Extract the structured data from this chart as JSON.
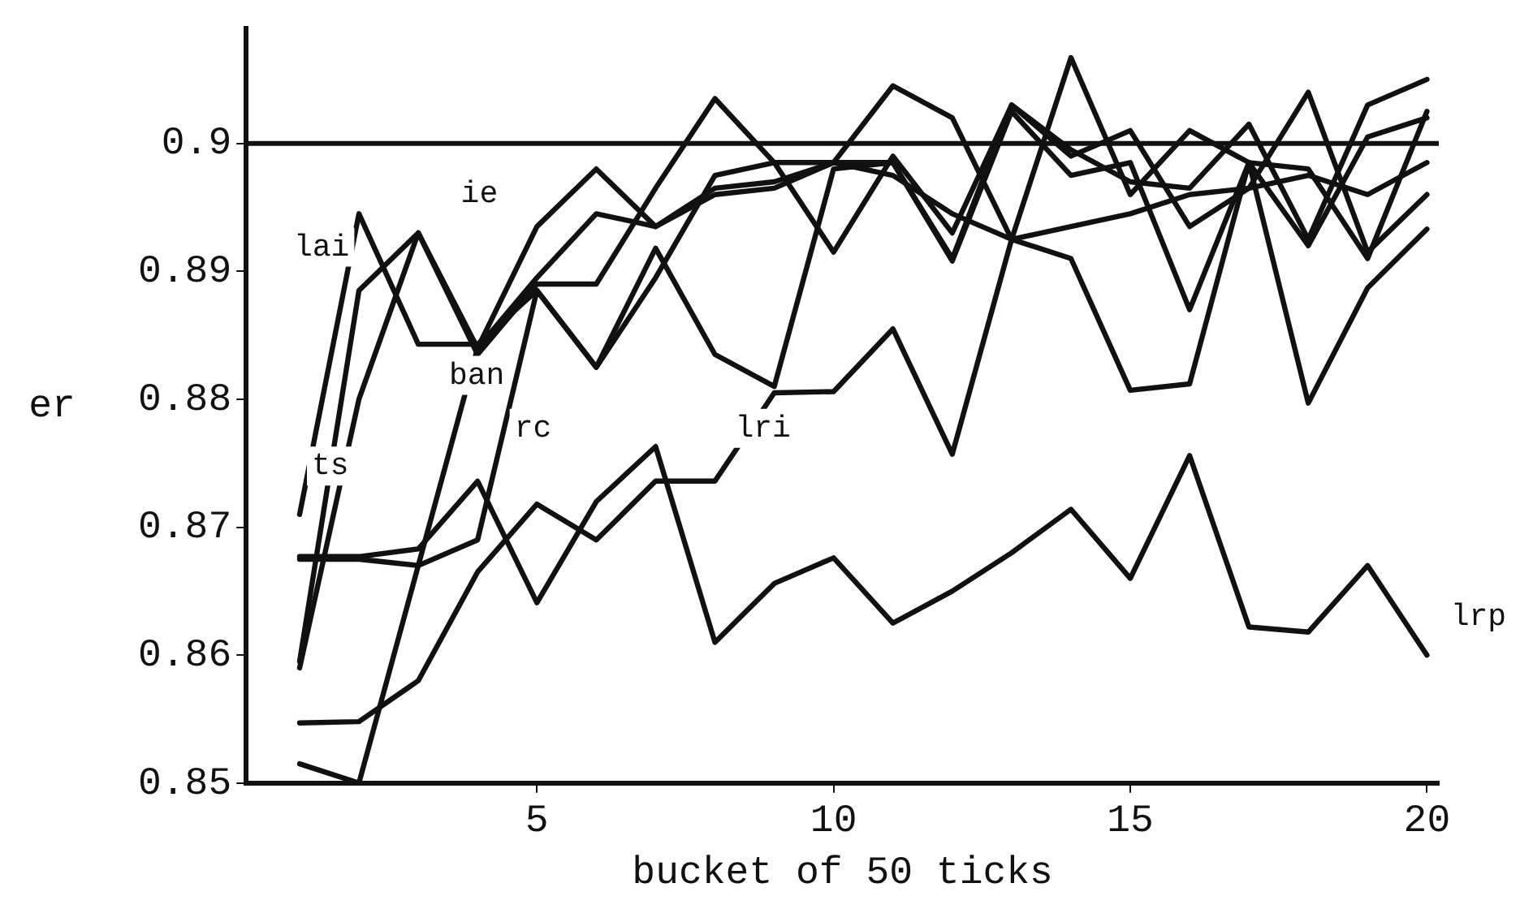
{
  "chart_data": {
    "type": "line",
    "xlabel": "bucket of 50 ticks",
    "ylabel": "er",
    "x": [
      1,
      2,
      3,
      4,
      5,
      6,
      7,
      8,
      9,
      10,
      11,
      12,
      13,
      14,
      15,
      16,
      17,
      18,
      19,
      20
    ],
    "series": [
      {
        "name": "lai",
        "color": "#111111",
        "values": [
          0.871,
          0.8945,
          0.8843,
          0.8843,
          0.8885,
          0.8825,
          0.8895,
          0.8975,
          0.8985,
          0.8915,
          0.899,
          0.893,
          0.903,
          0.899,
          0.901,
          0.8935,
          0.8965,
          0.904,
          0.8915,
          0.896
        ]
      },
      {
        "name": "ie",
        "color": "#111111",
        "values": [
          0.8595,
          0.8885,
          0.893,
          0.884,
          0.8935,
          0.898,
          0.8935,
          0.8965,
          0.897,
          0.8985,
          0.9045,
          0.902,
          0.8925,
          0.9067,
          0.896,
          0.901,
          0.8985,
          0.898,
          0.891,
          0.9025
        ]
      },
      {
        "name": "ts",
        "color": "#111111",
        "values": [
          0.859,
          0.88,
          0.893,
          0.8835,
          0.889,
          0.889,
          0.8965,
          0.9035,
          0.8985,
          0.8985,
          0.8985,
          0.891,
          0.903,
          0.8995,
          0.897,
          0.8965,
          0.9015,
          0.8925,
          0.903,
          0.905
        ]
      },
      {
        "name": "ban",
        "color": "#111111",
        "values": [
          0.8515,
          0.85,
          0.867,
          0.884,
          0.8895,
          0.8945,
          0.8935,
          0.896,
          0.8965,
          0.8985,
          0.8975,
          0.8945,
          0.8925,
          0.8935,
          0.8945,
          0.896,
          0.8965,
          0.8975,
          0.896,
          0.8985
        ]
      },
      {
        "name": "rc",
        "color": "#111111",
        "values": [
          0.8675,
          0.8675,
          0.867,
          0.869,
          0.8885,
          0.8825,
          0.8918,
          0.8835,
          0.881,
          0.898,
          0.8985,
          0.8908,
          0.9025,
          0.8975,
          0.8985,
          0.887,
          0.8985,
          0.892,
          0.9005,
          0.902
        ]
      },
      {
        "name": "lri",
        "color": "#111111",
        "values": [
          0.8547,
          0.8548,
          0.858,
          0.8665,
          0.8718,
          0.869,
          0.8736,
          0.8736,
          0.8805,
          0.8806,
          0.8855,
          0.8757,
          0.8925,
          0.891,
          0.8807,
          0.8812,
          0.8985,
          0.8797,
          0.8887,
          0.8933
        ]
      },
      {
        "name": "lrp",
        "color": "#111111",
        "values": [
          0.8677,
          0.8677,
          0.8683,
          0.8736,
          0.8641,
          0.872,
          0.8763,
          0.861,
          0.8656,
          0.8676,
          0.8625,
          0.865,
          0.868,
          0.8714,
          0.866,
          0.8756,
          0.8622,
          0.8618,
          0.867,
          0.86
        ]
      }
    ],
    "xlim": [
      0.1,
      20.2
    ],
    "xticks": [
      5,
      10,
      15,
      20
    ],
    "ylim": [
      0.85,
      0.909
    ],
    "yticks": [
      0.85,
      0.86,
      0.87,
      0.88,
      0.89,
      0.9
    ],
    "ref_lines": [
      {
        "axis": "y",
        "value": 0.9,
        "color": "#111111"
      }
    ],
    "grid": false,
    "legend": false,
    "marker": "none",
    "line_style": "solid"
  }
}
